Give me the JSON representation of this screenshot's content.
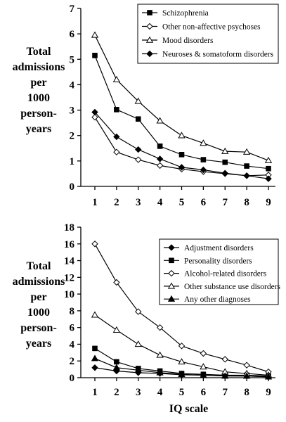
{
  "chart_data": [
    {
      "type": "line",
      "title": "",
      "ylabel_lines": [
        "Total",
        "admissions",
        "per",
        "1000",
        "person-",
        "years"
      ],
      "xlabel": "",
      "x": [
        1,
        2,
        3,
        4,
        5,
        6,
        7,
        8,
        9
      ],
      "xlim": [
        1,
        9
      ],
      "ylim": [
        0,
        7
      ],
      "yticks": [
        0,
        1,
        2,
        3,
        4,
        5,
        6,
        7
      ],
      "grid": false,
      "legend_position": "top-right",
      "series": [
        {
          "name": "Schizophrenia",
          "marker": "square-filled",
          "values": [
            5.15,
            3.02,
            2.65,
            1.58,
            1.25,
            1.05,
            0.95,
            0.8,
            0.7
          ]
        },
        {
          "name": "Other non-affective psychoses",
          "marker": "diamond-open",
          "values": [
            2.72,
            1.35,
            1.05,
            0.82,
            0.68,
            0.58,
            0.5,
            0.42,
            0.45
          ]
        },
        {
          "name": "Mood disorders",
          "marker": "triangle-open",
          "values": [
            5.95,
            4.2,
            3.35,
            2.58,
            2.0,
            1.7,
            1.38,
            1.35,
            1.02
          ]
        },
        {
          "name": "Neuroses & somatoform disorders",
          "marker": "diamond-filled",
          "values": [
            2.92,
            1.95,
            1.45,
            1.08,
            0.75,
            0.65,
            0.52,
            0.42,
            0.3
          ]
        }
      ]
    },
    {
      "type": "line",
      "title": "",
      "ylabel_lines": [
        "Total",
        "admissions",
        "per",
        "1000",
        "person-",
        "years"
      ],
      "xlabel": "IQ scale",
      "x": [
        1,
        2,
        3,
        4,
        5,
        6,
        7,
        8,
        9
      ],
      "xlim": [
        1,
        9
      ],
      "ylim": [
        0,
        18
      ],
      "yticks": [
        0,
        2,
        4,
        6,
        8,
        10,
        12,
        14,
        16,
        18
      ],
      "grid": false,
      "legend_position": "top-right",
      "series": [
        {
          "name": "Adjustment disorders",
          "marker": "diamond-filled",
          "values": [
            1.2,
            0.8,
            0.6,
            0.5,
            0.35,
            0.3,
            0.22,
            0.2,
            0.1
          ]
        },
        {
          "name": "Personality disorders",
          "marker": "square-filled",
          "values": [
            3.5,
            1.9,
            1.1,
            0.8,
            0.5,
            0.4,
            0.3,
            0.3,
            0.2
          ]
        },
        {
          "name": "Alcohol-related disorders",
          "marker": "diamond-open",
          "values": [
            16.0,
            11.4,
            7.9,
            6.0,
            3.8,
            2.9,
            2.2,
            1.5,
            0.7
          ]
        },
        {
          "name": "Other substance use disorders",
          "marker": "triangle-open",
          "values": [
            7.5,
            5.7,
            4.0,
            2.7,
            1.9,
            1.3,
            0.7,
            0.5,
            0.3
          ]
        },
        {
          "name": "Any other diagnoses",
          "marker": "triangle-filled",
          "values": [
            2.3,
            1.2,
            0.9,
            0.6,
            0.4,
            0.3,
            0.2,
            0.2,
            0.1
          ]
        }
      ]
    }
  ]
}
